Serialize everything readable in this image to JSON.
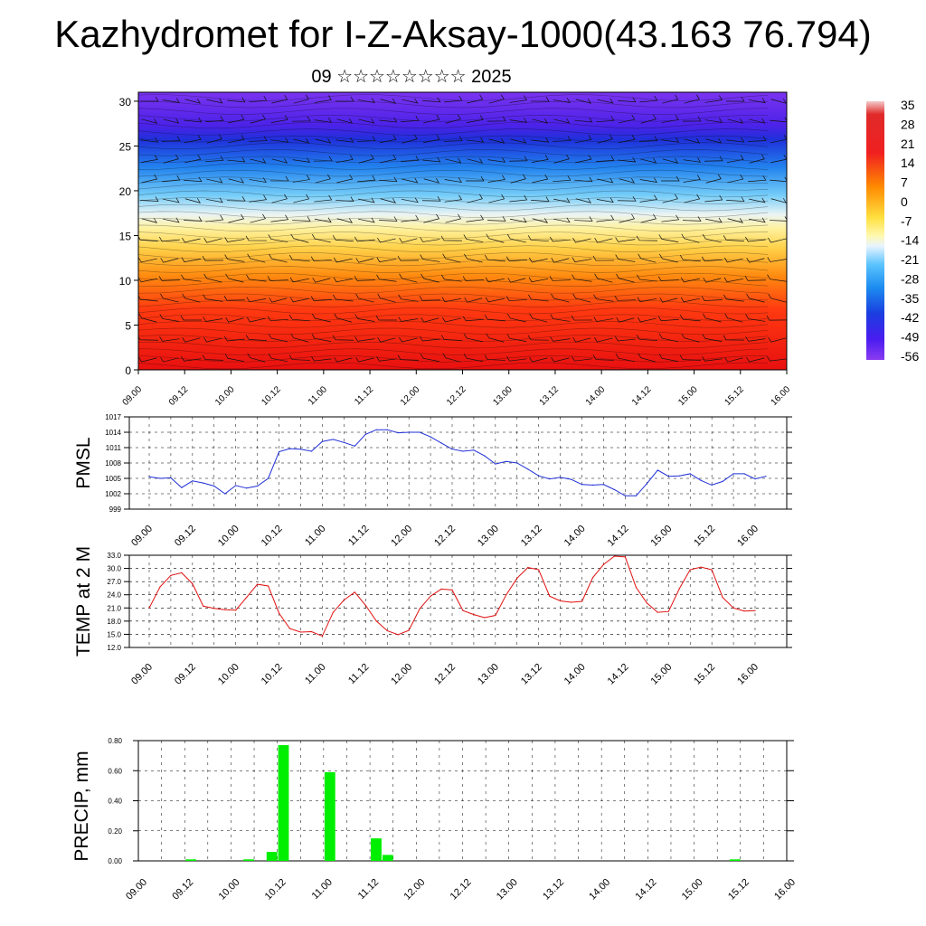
{
  "page": {
    "title": "Kazhydromet for I-Z-Aksay-1000(43.163 76.794)",
    "subtitle": "09 ☆☆☆☆☆☆☆☆ 2025"
  },
  "colors": {
    "pmsl_line": "#1f2fd6",
    "temp_line": "#e01010",
    "precip_bar": "#00ee00",
    "frame": "#000000"
  },
  "time_labels": [
    "09.00",
    "09.12",
    "10.00",
    "10.12",
    "11.00",
    "11.12",
    "12.00",
    "12.12",
    "13.00",
    "13.12",
    "14.00",
    "14.12",
    "15.00",
    "15.12",
    "16.00"
  ],
  "chart_data": [
    {
      "type": "heatmap",
      "title": "",
      "ylabel": "",
      "ylim": [
        0,
        31
      ],
      "yticks": [
        "0",
        "5",
        "10",
        "15",
        "20",
        "25",
        "30"
      ],
      "x": [
        "09.00",
        "09.12",
        "10.00",
        "10.12",
        "11.00",
        "11.12",
        "12.00",
        "12.12",
        "13.00",
        "13.12",
        "14.00",
        "14.12",
        "15.00",
        "15.12",
        "16.00"
      ],
      "colorbar": {
        "labels": [
          "35",
          "28",
          "21",
          "14",
          "7",
          "0",
          "-7",
          "-14",
          "-21",
          "-28",
          "-35",
          "-42",
          "-49",
          "-56"
        ],
        "range": [
          -60,
          38
        ]
      },
      "overlay": "wind barbs"
    },
    {
      "type": "line",
      "ylabel": "PMSL",
      "yticks": [
        "1017",
        "1014",
        "1011",
        "1008",
        "1005",
        "1002",
        "999"
      ],
      "ylim": [
        999,
        1017
      ],
      "series": [
        {
          "values": [
            1005.3,
            1005.0,
            1005.1,
            1003.2,
            1004.5,
            1004.1,
            1003.5,
            1002.0,
            1003.6,
            1003.1,
            1003.5,
            1005.0,
            1010.2,
            1010.8,
            1010.7,
            1010.3,
            1012.2,
            1012.6,
            1012.0,
            1011.3,
            1013.6,
            1014.5,
            1014.5,
            1013.9,
            1014.0,
            1014.0,
            1013.1,
            1011.9,
            1010.7,
            1010.3,
            1010.5,
            1009.4,
            1007.8,
            1008.3,
            1008.0,
            1006.8,
            1005.5,
            1004.9,
            1005.2,
            1004.8,
            1003.8,
            1003.7,
            1003.8,
            1002.8,
            1001.6,
            1001.6,
            1004.0,
            1006.6,
            1005.4,
            1005.5,
            1005.9,
            1004.6,
            1003.7,
            1004.4,
            1005.9,
            1005.9,
            1004.9,
            1005.4
          ]
        }
      ]
    },
    {
      "type": "line",
      "ylabel": "TEMP at 2 M",
      "yticks": [
        "33.0",
        "30.0",
        "27.0",
        "24.0",
        "21.0",
        "18.0",
        "15.0",
        "12.0"
      ],
      "ylim": [
        12,
        33
      ],
      "series": [
        {
          "values": [
            21.0,
            25.8,
            28.4,
            29.0,
            26.5,
            21.4,
            20.9,
            20.6,
            20.5,
            23.4,
            26.4,
            26.0,
            19.8,
            16.3,
            15.5,
            15.6,
            14.6,
            20.0,
            22.8,
            24.6,
            21.6,
            18.0,
            15.8,
            14.9,
            15.9,
            20.8,
            23.7,
            25.3,
            25.1,
            20.4,
            19.5,
            18.8,
            19.3,
            24.0,
            27.8,
            30.2,
            29.7,
            23.7,
            22.6,
            22.3,
            22.5,
            27.9,
            30.9,
            32.8,
            32.6,
            25.7,
            22.1,
            20.0,
            20.2,
            25.4,
            29.7,
            30.3,
            29.7,
            23.4,
            21.0,
            20.3,
            20.4
          ]
        }
      ]
    },
    {
      "type": "bar",
      "ylabel": "PRECIP, mm",
      "yticks": [
        "0.80",
        "0.60",
        "0.40",
        "0.20",
        "0.00"
      ],
      "ylim": [
        0,
        0.8
      ],
      "bars": [
        {
          "t": 4,
          "value": 0.01
        },
        {
          "t": 9,
          "value": 0.01
        },
        {
          "t": 11,
          "value": 0.06
        },
        {
          "t": 12,
          "value": 0.77
        },
        {
          "t": 16,
          "value": 0.59
        },
        {
          "t": 20,
          "value": 0.15
        },
        {
          "t": 21,
          "value": 0.04
        },
        {
          "t": 51,
          "value": 0.01
        }
      ]
    }
  ]
}
